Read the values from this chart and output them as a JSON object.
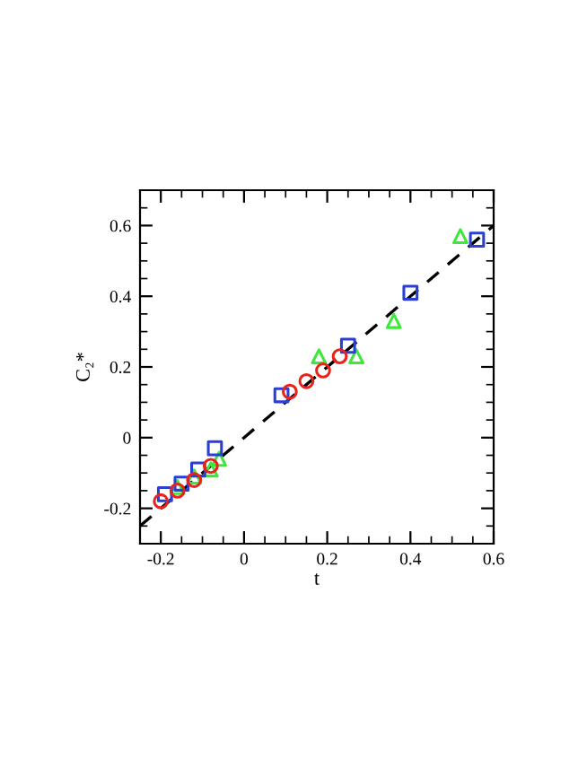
{
  "chart_data": {
    "type": "scatter",
    "xlabel": "t",
    "ylabel": "C₂*",
    "xlim": [
      -0.25,
      0.6
    ],
    "ylim": [
      -0.3,
      0.7
    ],
    "xticks": [
      -0.2,
      0,
      0.2,
      0.4,
      0.6
    ],
    "yticks": [
      -0.2,
      0,
      0.2,
      0.4,
      0.6
    ],
    "grid": false,
    "legend": false,
    "series": [
      {
        "type": "line",
        "color": "#000000",
        "line_style": "dashed",
        "marker": "none",
        "x": [
          -0.25,
          0.6
        ],
        "values": [
          -0.25,
          0.6
        ]
      },
      {
        "color": "#e8231c",
        "marker": "circle",
        "x": [
          -0.2,
          -0.16,
          -0.12,
          -0.08,
          0.11,
          0.15,
          0.19,
          0.23
        ],
        "values": [
          -0.18,
          -0.15,
          -0.12,
          -0.08,
          0.13,
          0.16,
          0.19,
          0.23
        ]
      },
      {
        "color": "#2a3fd6",
        "marker": "square",
        "x": [
          -0.19,
          -0.15,
          -0.11,
          -0.07,
          0.09,
          0.25,
          0.4,
          0.56
        ],
        "values": [
          -0.16,
          -0.13,
          -0.09,
          -0.03,
          0.12,
          0.26,
          0.41,
          0.56
        ]
      },
      {
        "color": "#3ee83a",
        "marker": "triangle",
        "x": [
          -0.16,
          -0.12,
          -0.08,
          -0.06,
          0.18,
          0.27,
          0.36,
          0.52
        ],
        "values": [
          -0.14,
          -0.11,
          -0.09,
          -0.06,
          0.23,
          0.23,
          0.33,
          0.57
        ]
      }
    ]
  }
}
